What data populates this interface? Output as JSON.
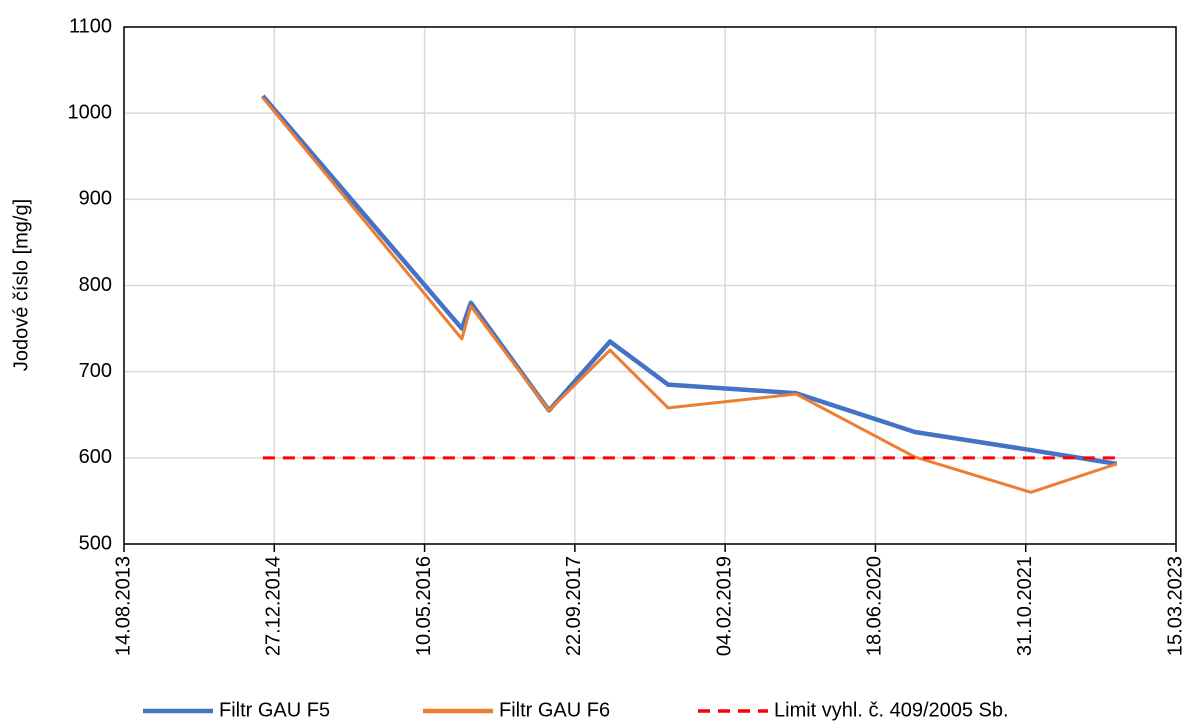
{
  "chart_data": {
    "type": "line",
    "y_label": "Jodové číslo [mg/g]",
    "x": [
      "2014-11-19",
      "2016-09-11",
      "2016-10-11",
      "2017-06-28",
      "2018-01-17",
      "2018-07-29",
      "2019-09-28",
      "2020-10-27",
      "2021-11-17",
      "2022-08-30"
    ],
    "series": [
      {
        "name": "Filtr GAU F5",
        "color": "#4472c4",
        "dash": false,
        "values": [
          1020,
          750,
          780,
          655,
          735,
          685,
          675,
          630,
          609,
          593
        ]
      },
      {
        "name": "Filtr GAU F6",
        "color": "#ed7d31",
        "dash": false,
        "values": [
          1018,
          738,
          776,
          655,
          725,
          658,
          674,
          601,
          560,
          593
        ]
      },
      {
        "name": "Limit vyhl. č. 409/2005 Sb.",
        "color": "#ff0000",
        "dash": true,
        "values": [
          600,
          600,
          600,
          600,
          600,
          600,
          600,
          600,
          600,
          600
        ]
      }
    ],
    "xlim": [
      "2013-08-14",
      "2023-03-15"
    ],
    "xticks": [
      {
        "value": "2013-08-14",
        "label": "14.08.2013"
      },
      {
        "value": "2014-12-27",
        "label": "27.12.2014"
      },
      {
        "value": "2016-05-10",
        "label": "10.05.2016"
      },
      {
        "value": "2017-09-22",
        "label": "22.09.2017"
      },
      {
        "value": "2019-02-04",
        "label": "04.02.2019"
      },
      {
        "value": "2020-06-18",
        "label": "18.06.2020"
      },
      {
        "value": "2021-10-31",
        "label": "31.10.2021"
      },
      {
        "value": "2023-03-15",
        "label": "15.03.2023"
      }
    ],
    "ylim": [
      500,
      1100
    ],
    "yticks": [
      500,
      600,
      700,
      800,
      900,
      1000,
      1100
    ],
    "grid": true,
    "legend": "bottom"
  }
}
